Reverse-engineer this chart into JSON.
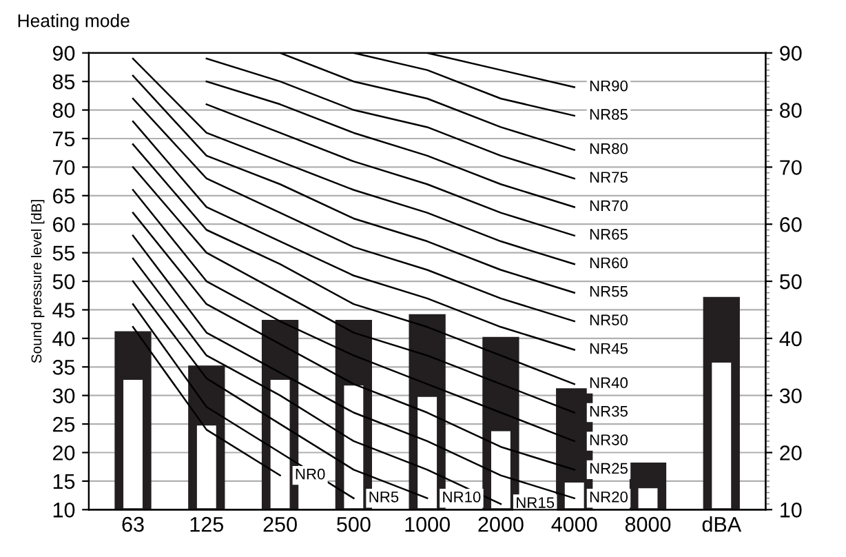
{
  "chart_data": {
    "type": "bar",
    "title": "Heating mode",
    "ylabel": "Sound pressure level [dB]",
    "categories": [
      "63",
      "125",
      "250",
      "500",
      "1000",
      "2000",
      "4000",
      "8000",
      "dBA"
    ],
    "grid": "y",
    "ylim": [
      10,
      90
    ],
    "yticks": [
      10,
      15,
      20,
      25,
      30,
      35,
      40,
      45,
      50,
      55,
      60,
      65,
      70,
      75,
      80,
      85,
      90
    ],
    "y2lim": [
      10,
      90
    ],
    "y2ticks": [
      10,
      20,
      30,
      40,
      50,
      60,
      70,
      80,
      90
    ],
    "series": [
      {
        "color": "#231f20",
        "values": [
          41,
          35,
          43,
          43,
          44,
          40,
          31,
          18,
          47
        ]
      },
      {
        "color": "#ffffff",
        "values": [
          33,
          25,
          33,
          32,
          30,
          24,
          15,
          14,
          36
        ]
      },
      {
        "type": "line",
        "name": "NR0",
        "color": "#000000",
        "values": [
          42,
          24,
          16,
          null,
          null,
          null,
          null,
          null,
          null
        ]
      },
      {
        "type": "line",
        "name": "NR5",
        "color": "#000000",
        "values": [
          46,
          28,
          20,
          12,
          null,
          null,
          null,
          null,
          null
        ]
      },
      {
        "type": "line",
        "name": "NR10",
        "color": "#000000",
        "values": [
          50,
          33,
          25,
          17,
          12,
          null,
          null,
          null,
          null
        ]
      },
      {
        "type": "line",
        "name": "NR15",
        "color": "#000000",
        "values": [
          54,
          37,
          30,
          22,
          17,
          11,
          null,
          null,
          null
        ]
      },
      {
        "type": "line",
        "name": "NR20",
        "color": "#000000",
        "values": [
          58,
          41,
          34,
          27,
          22,
          16,
          12,
          null,
          null
        ]
      },
      {
        "type": "line",
        "name": "NR25",
        "color": "#000000",
        "values": [
          62,
          46,
          39,
          32,
          27,
          21,
          17,
          null,
          null
        ]
      },
      {
        "type": "line",
        "name": "NR30",
        "color": "#000000",
        "values": [
          66,
          50,
          43,
          37,
          32,
          27,
          22,
          null,
          null
        ]
      },
      {
        "type": "line",
        "name": "NR35",
        "color": "#000000",
        "values": [
          70,
          55,
          48,
          41,
          37,
          32,
          27,
          null,
          null
        ]
      },
      {
        "type": "line",
        "name": "NR40",
        "color": "#000000",
        "values": [
          74,
          59,
          53,
          46,
          42,
          37,
          32,
          null,
          null
        ]
      },
      {
        "type": "line",
        "name": "NR45",
        "color": "#000000",
        "values": [
          78,
          63,
          57,
          51,
          47,
          42,
          38,
          null,
          null
        ]
      },
      {
        "type": "line",
        "name": "NR50",
        "color": "#000000",
        "values": [
          82,
          68,
          62,
          56,
          52,
          47,
          43,
          null,
          null
        ]
      },
      {
        "type": "line",
        "name": "NR55",
        "color": "#000000",
        "values": [
          86,
          72,
          67,
          61,
          57,
          52,
          48,
          null,
          null
        ]
      },
      {
        "type": "line",
        "name": "NR60",
        "color": "#000000",
        "values": [
          89,
          76,
          71,
          66,
          62,
          57,
          53,
          null,
          null
        ]
      },
      {
        "type": "line",
        "name": "NR65",
        "color": "#000000",
        "values": [
          null,
          81,
          76,
          71,
          67,
          62,
          58,
          null,
          null
        ]
      },
      {
        "type": "line",
        "name": "NR70",
        "color": "#000000",
        "values": [
          null,
          85,
          81,
          76,
          72,
          67,
          63,
          null,
          null
        ]
      },
      {
        "type": "line",
        "name": "NR75",
        "color": "#000000",
        "values": [
          null,
          89,
          85,
          80,
          77,
          72,
          68,
          null,
          null
        ]
      },
      {
        "type": "line",
        "name": "NR80",
        "color": "#000000",
        "values": [
          null,
          null,
          90,
          85,
          82,
          77,
          73,
          null,
          null
        ]
      },
      {
        "type": "line",
        "name": "NR85",
        "color": "#000000",
        "values": [
          null,
          null,
          null,
          90,
          87,
          82,
          79,
          null,
          null
        ]
      },
      {
        "type": "line",
        "name": "NR90",
        "color": "#000000",
        "values": [
          null,
          null,
          null,
          null,
          90,
          87,
          84,
          null,
          null
        ]
      }
    ]
  }
}
